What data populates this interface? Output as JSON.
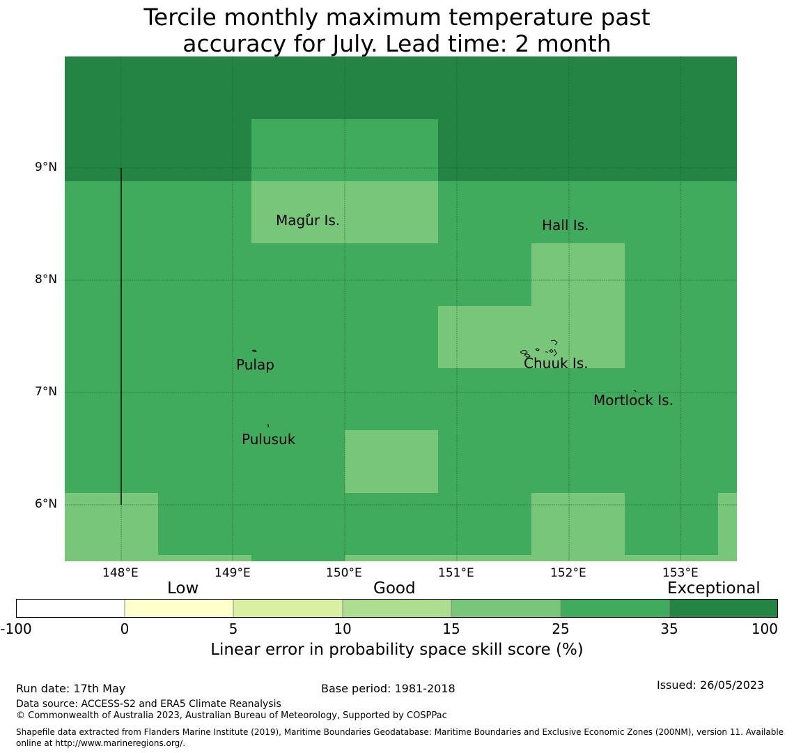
{
  "title_line1": "Tercile monthly maximum temperature past",
  "title_line2": "accuracy for July. Lead time: 2 month",
  "colors": {
    "c0": "#ffffff",
    "c1": "#ffffcc",
    "c2": "#d9f0a3",
    "c3": "#addd8e",
    "c4": "#78c679",
    "c5": "#41ab5d",
    "c6": "#238443"
  },
  "axes": {
    "lat_labels": [
      "9°N",
      "8°N",
      "7°N",
      "6°N"
    ],
    "lon_labels": [
      "148°E",
      "149°E",
      "150°E",
      "151°E",
      "152°E",
      "153°E"
    ]
  },
  "places": [
    "Magur Is.",
    "Hall Is.",
    "Pulap",
    "Chuuk Is.",
    "Mortlock Is.",
    "Pulusuk"
  ],
  "colorbar": {
    "categories": [
      "Low",
      "Good",
      "Exceptional"
    ],
    "ticks": [
      "-100",
      "0",
      "5",
      "10",
      "15",
      "25",
      "35",
      "100"
    ],
    "label": "Linear error in probability space skill score (%)"
  },
  "footer": {
    "run_date": "Run date: 17th May",
    "base_period": "Base period: 1981-2018",
    "issued": "Issued: 26/05/2023",
    "data_source": "Data source: ACCESS-S2 and ERA5 Climate Reanalysis",
    "copyright": "© Commonwealth of Australia 2023, Australian Bureau of Meteorology, Supported by COSPPac",
    "shapefile": "Shapefile data extracted from Flanders Marine Institute (2019), Maritime Boundaries Geodatabase: Maritime Boundaries and Exclusive Economic Zones (200NM), version 11. Available online at http://www.marineregions.org/."
  }
}
